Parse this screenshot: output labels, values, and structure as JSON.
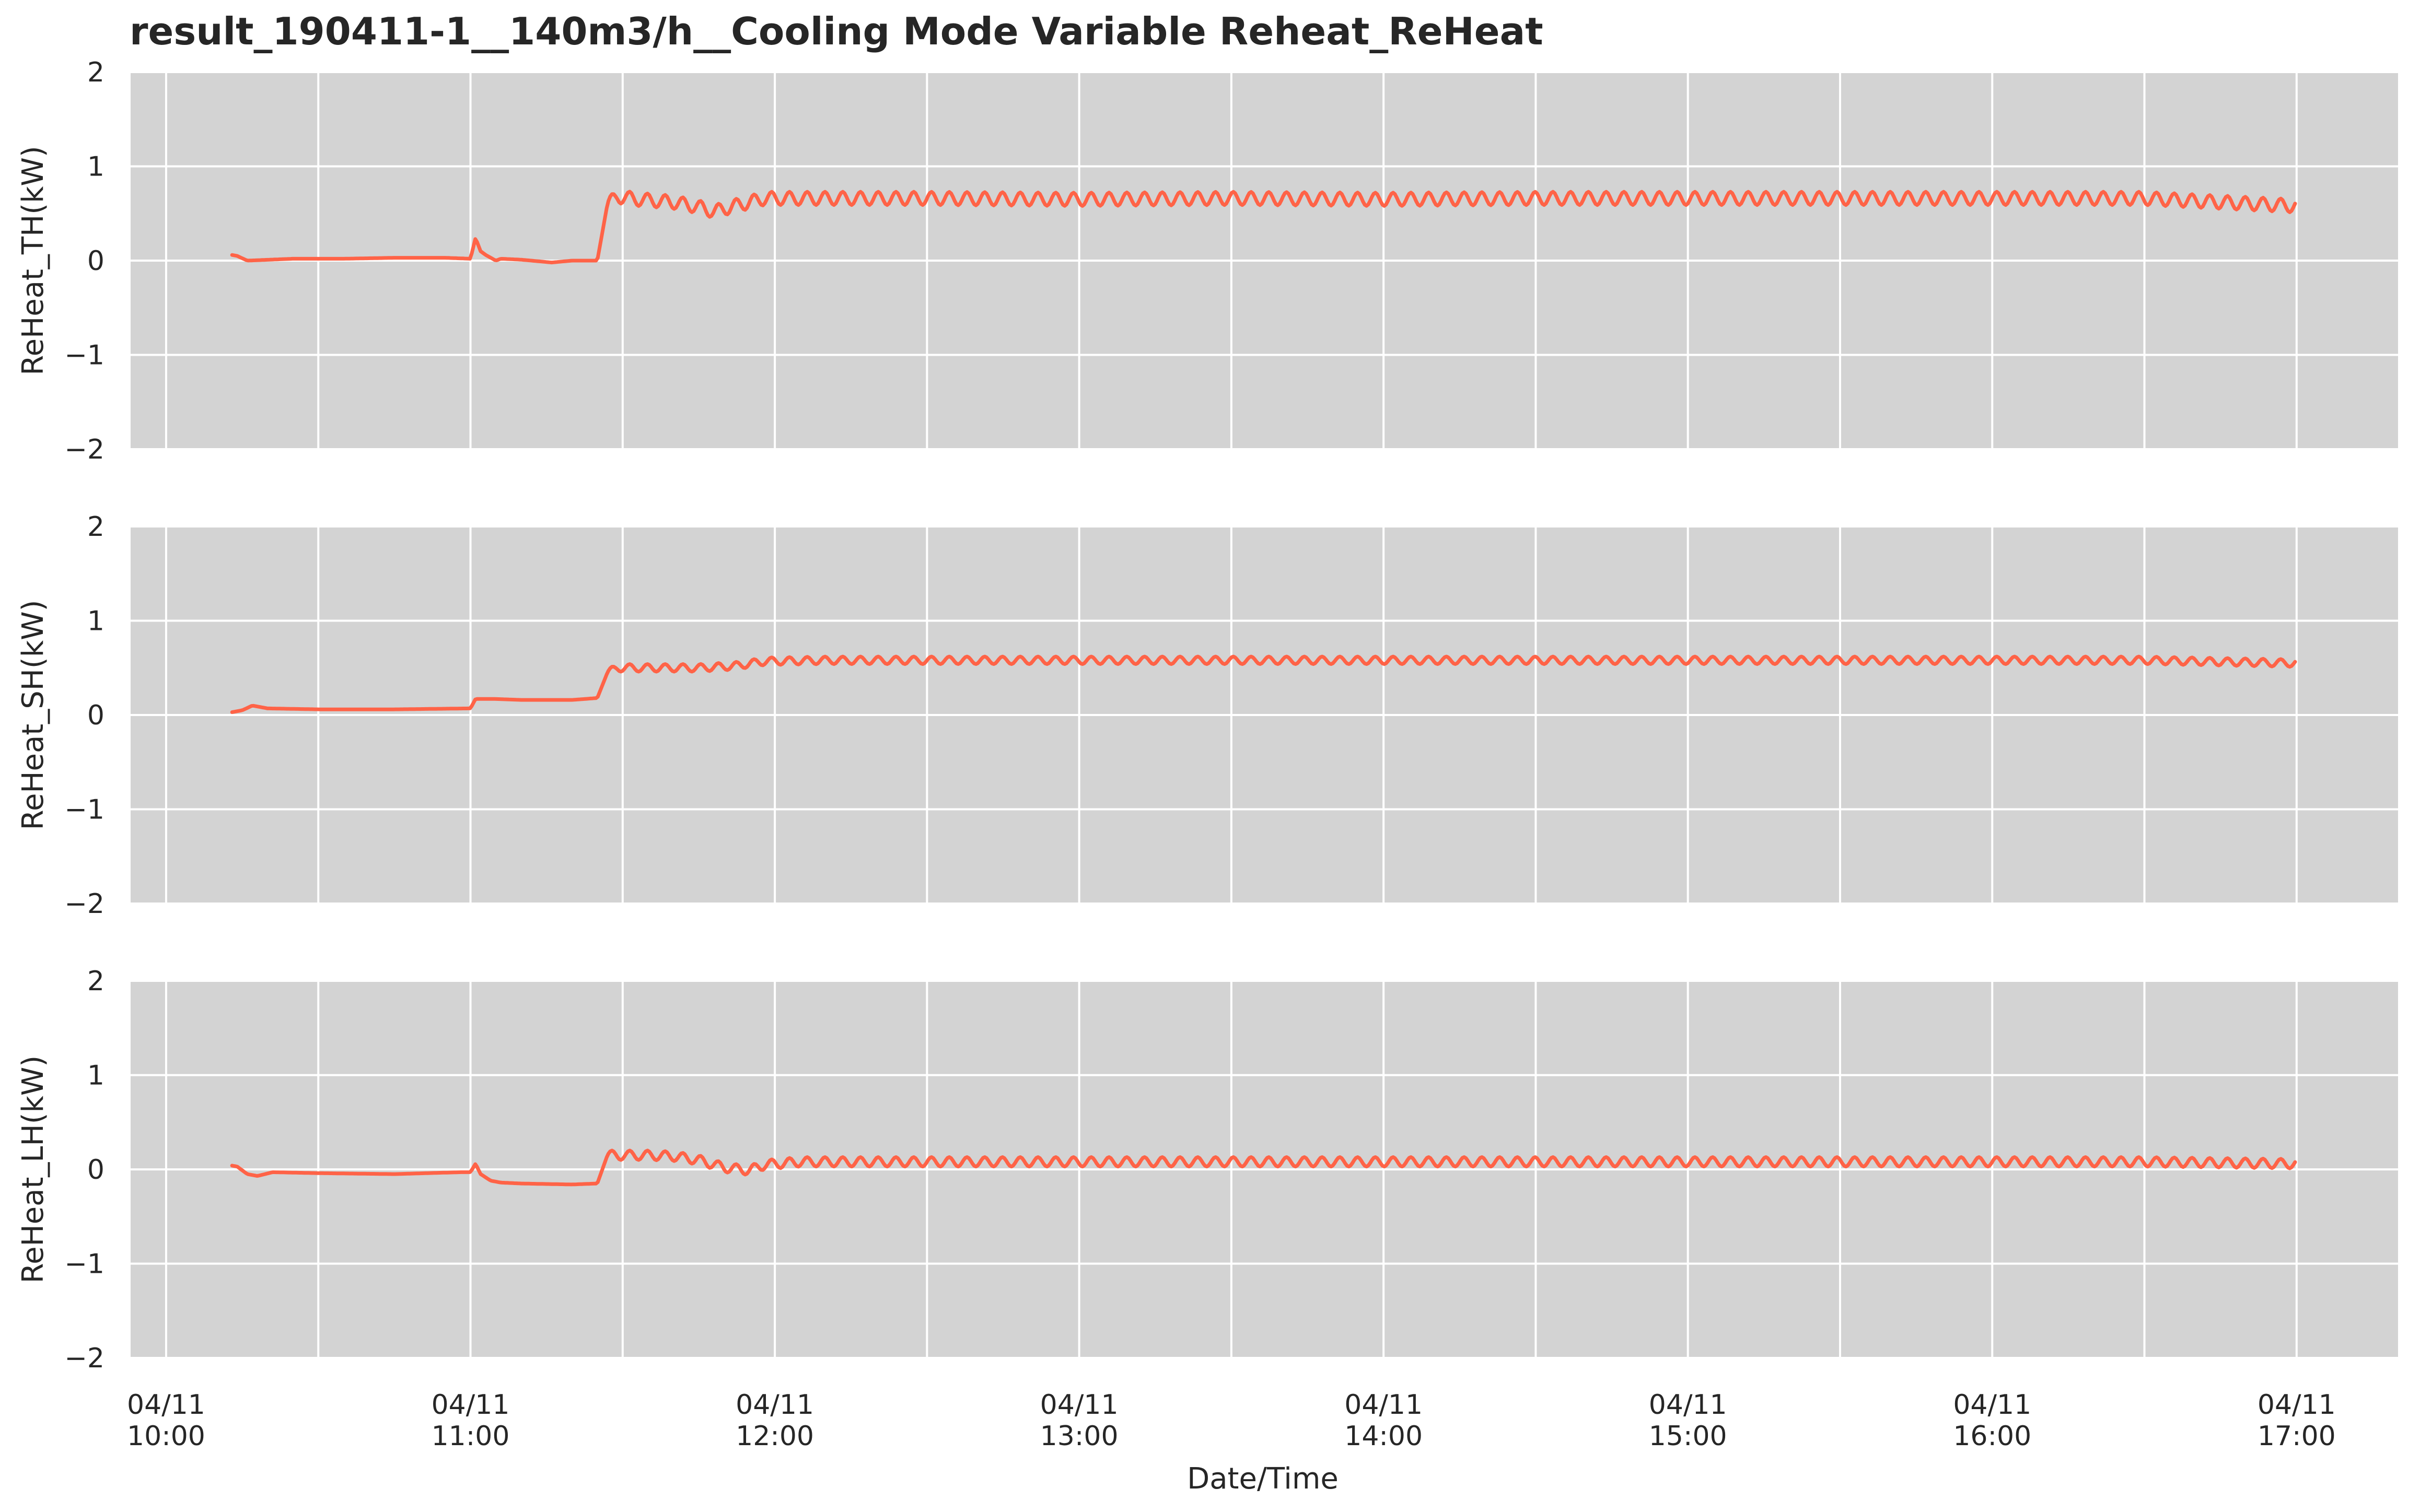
{
  "chart_data": {
    "type": "line",
    "title": "result_190411-1__140m3/h__Cooling Mode Variable Reheat_ReHeat",
    "xlabel": "Date/Time",
    "x_ticks": [
      {
        "date": "04/11",
        "time": "10:00"
      },
      {
        "date": "04/11",
        "time": "11:00"
      },
      {
        "date": "04/11",
        "time": "12:00"
      },
      {
        "date": "04/11",
        "time": "13:00"
      },
      {
        "date": "04/11",
        "time": "14:00"
      },
      {
        "date": "04/11",
        "time": "15:00"
      },
      {
        "date": "04/11",
        "time": "16:00"
      },
      {
        "date": "04/11",
        "time": "17:00"
      }
    ],
    "xlim": [
      "09:53",
      "17:20"
    ],
    "ylim": [
      -2,
      2
    ],
    "y_ticks": [
      2,
      1,
      0,
      -1,
      -2
    ],
    "y_tick_labels": [
      "2",
      "1",
      "0",
      "−1",
      "−2"
    ],
    "grid": true,
    "line_color": "#ff6347",
    "panel_background": "#d3d3d3",
    "grid_color": "#ffffff",
    "panels": [
      {
        "ylabel": "ReHeat_TH(kW)",
        "series": [
          {
            "x": [
              "10:13",
              "10:14",
              "10:16",
              "10:25",
              "10:35",
              "10:45",
              "10:55",
              "11:00",
              "11:01",
              "11:02",
              "11:03",
              "11:05",
              "11:06",
              "11:10",
              "11:16",
              "11:20",
              "11:25",
              "11:27",
              "11:29",
              "11:33",
              "11:40",
              "11:45",
              "11:48",
              "11:52",
              "11:55",
              "11:58",
              "12:05",
              "12:30",
              "13:00",
              "13:30",
              "14:00",
              "14:30",
              "15:00",
              "15:30",
              "16:00",
              "16:30",
              "17:00"
            ],
            "y": [
              0.06,
              0.05,
              0.0,
              0.02,
              0.02,
              0.03,
              0.03,
              0.02,
              0.24,
              0.1,
              0.06,
              0.0,
              0.02,
              0.01,
              -0.02,
              0.0,
              0.0,
              0.6,
              0.68,
              0.65,
              0.62,
              0.57,
              0.52,
              0.58,
              0.62,
              0.66,
              0.66,
              0.66,
              0.65,
              0.66,
              0.65,
              0.66,
              0.66,
              0.66,
              0.66,
              0.66,
              0.58
            ],
            "oscillation_amplitude": 0.07
          }
        ]
      },
      {
        "ylabel": "ReHeat_SH(kW)",
        "series": [
          {
            "x": [
              "10:13",
              "10:15",
              "10:17",
              "10:20",
              "10:30",
              "10:45",
              "11:00",
              "11:01",
              "11:05",
              "11:10",
              "11:15",
              "11:20",
              "11:25",
              "11:27",
              "11:29",
              "11:35",
              "11:45",
              "11:52",
              "11:58",
              "12:10",
              "12:30",
              "13:00",
              "13:30",
              "14:00",
              "14:30",
              "15:00",
              "15:30",
              "16:00",
              "16:30",
              "17:00"
            ],
            "y": [
              0.03,
              0.05,
              0.1,
              0.07,
              0.06,
              0.06,
              0.07,
              0.17,
              0.17,
              0.16,
              0.16,
              0.16,
              0.18,
              0.45,
              0.5,
              0.5,
              0.5,
              0.52,
              0.57,
              0.58,
              0.58,
              0.58,
              0.58,
              0.58,
              0.58,
              0.58,
              0.58,
              0.58,
              0.58,
              0.55
            ],
            "oscillation_amplitude": 0.04
          }
        ]
      },
      {
        "ylabel": "ReHeat_LH(kW)",
        "series": [
          {
            "x": [
              "10:13",
              "10:14",
              "10:16",
              "10:18",
              "10:21",
              "10:30",
              "10:45",
              "10:58",
              "11:00",
              "11:01",
              "11:02",
              "11:04",
              "11:06",
              "11:10",
              "11:20",
              "11:25",
              "11:27",
              "11:29",
              "11:35",
              "11:40",
              "11:45",
              "11:50",
              "11:55",
              "11:58",
              "12:05",
              "12:30",
              "13:00",
              "13:30",
              "14:00",
              "14:30",
              "15:00",
              "15:30",
              "16:00",
              "16:30",
              "17:00"
            ],
            "y": [
              0.04,
              0.03,
              -0.05,
              -0.07,
              -0.03,
              -0.04,
              -0.05,
              -0.03,
              -0.03,
              0.06,
              -0.05,
              -0.12,
              -0.14,
              -0.15,
              -0.16,
              -0.15,
              0.15,
              0.15,
              0.15,
              0.14,
              0.1,
              0.02,
              -0.01,
              0.05,
              0.08,
              0.08,
              0.08,
              0.08,
              0.08,
              0.08,
              0.08,
              0.08,
              0.08,
              0.08,
              0.06
            ],
            "oscillation_amplitude": 0.05
          }
        ]
      }
    ]
  }
}
